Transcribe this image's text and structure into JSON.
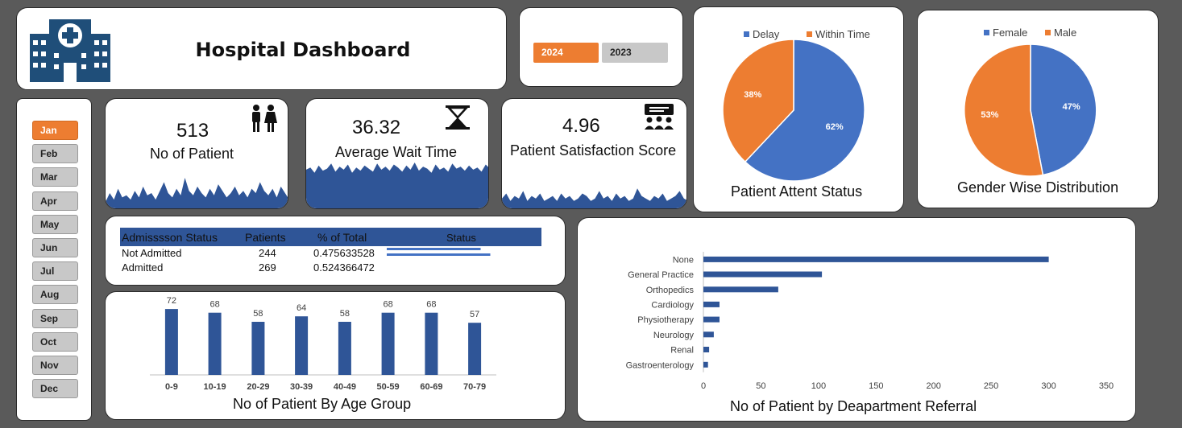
{
  "header": {
    "title": "Hospital Dashboard",
    "logo_icon": "hospital-icon"
  },
  "years": [
    {
      "label": "2024",
      "active": true
    },
    {
      "label": "2023",
      "active": false
    }
  ],
  "months": [
    {
      "label": "Jan",
      "active": true
    },
    {
      "label": "Feb",
      "active": false
    },
    {
      "label": "Mar",
      "active": false
    },
    {
      "label": "Apr",
      "active": false
    },
    {
      "label": "May",
      "active": false
    },
    {
      "label": "Jun",
      "active": false
    },
    {
      "label": "Jul",
      "active": false
    },
    {
      "label": "Aug",
      "active": false
    },
    {
      "label": "Sep",
      "active": false
    },
    {
      "label": "Oct",
      "active": false
    },
    {
      "label": "Nov",
      "active": false
    },
    {
      "label": "Dec",
      "active": false
    }
  ],
  "kpis": {
    "patients": {
      "value": "513",
      "label": "No of Patient",
      "icon": "people-icon"
    },
    "wait": {
      "value": "36.32",
      "label": "Average Wait Time",
      "icon": "hourglass-icon"
    },
    "satisfaction": {
      "value": "4.96",
      "label": "Patient Satisfaction Score",
      "icon": "audience-icon"
    }
  },
  "admission": {
    "headers": [
      "Admisssson Status",
      "Patients",
      "% of Total",
      "Status"
    ],
    "rows": [
      {
        "status": "Not Admitted",
        "patients": "244",
        "pct": "0.475633528",
        "fraction": 0.4756
      },
      {
        "status": "Admitted",
        "patients": "269",
        "pct": "0.524366472",
        "fraction": 0.5244
      }
    ]
  },
  "colors": {
    "blue": "#4472c4",
    "navy": "#2f5597",
    "orange": "#ed7d31",
    "grey": "#c8c8c8"
  },
  "chart_data": [
    {
      "type": "pie",
      "title": "Patient Attent Status",
      "legend": "top",
      "slices": [
        {
          "name": "Delay",
          "value": 62,
          "label": "62%",
          "color": "#4472c4"
        },
        {
          "name": "Within Time",
          "value": 38,
          "label": "38%",
          "color": "#ed7d31"
        }
      ]
    },
    {
      "type": "pie",
      "title": "Gender Wise Distribution",
      "legend": "top",
      "slices": [
        {
          "name": "Female",
          "value": 47,
          "label": "47%",
          "color": "#4472c4"
        },
        {
          "name": "Male",
          "value": 53,
          "label": "53%",
          "color": "#ed7d31"
        }
      ]
    },
    {
      "type": "bar",
      "title": "No of Patient By Age Group",
      "categories": [
        "0-9",
        "10-19",
        "20-29",
        "30-39",
        "40-49",
        "50-59",
        "60-69",
        "70-79"
      ],
      "values": [
        72,
        68,
        58,
        64,
        58,
        68,
        68,
        57
      ],
      "ylim": [
        0,
        80
      ],
      "color": "#2f5597"
    },
    {
      "type": "bar",
      "orientation": "horizontal",
      "title": "No of Patient by Deapartment Referral",
      "categories": [
        "None",
        "General Practice",
        "Orthopedics",
        "Cardiology",
        "Physiotherapy",
        "Neurology",
        "Renal",
        "Gastroenterology"
      ],
      "values": [
        300,
        103,
        65,
        14,
        14,
        9,
        5,
        4
      ],
      "xticks": [
        "0",
        "50",
        "100",
        "150",
        "200",
        "250",
        "300",
        "350"
      ],
      "xlim": [
        0,
        350
      ],
      "color": "#2f5597"
    },
    {
      "type": "area",
      "name": "patients-trend",
      "values": [
        3,
        7,
        4,
        9,
        5,
        6,
        4,
        8,
        5,
        10,
        6,
        7,
        4,
        8,
        12,
        7,
        5,
        9,
        6,
        14,
        8,
        6,
        10,
        7,
        5,
        9,
        6,
        11,
        8,
        5,
        7,
        10,
        6,
        8,
        5,
        9,
        7,
        12,
        8,
        6,
        9,
        5,
        10,
        7,
        4
      ],
      "color": "#2f5597"
    },
    {
      "type": "area",
      "name": "wait-trend",
      "values": [
        38,
        40,
        35,
        42,
        37,
        39,
        44,
        36,
        41,
        38,
        43,
        35,
        40,
        37,
        42,
        39,
        36,
        44,
        38,
        41,
        37,
        43,
        40,
        36,
        42,
        38,
        45,
        37,
        41,
        39,
        35,
        43,
        38,
        40,
        36,
        44,
        39,
        41,
        37,
        42,
        38,
        40,
        36,
        43,
        39
      ],
      "color": "#2f5597"
    },
    {
      "type": "area",
      "name": "satisfaction-trend",
      "values": [
        4,
        6,
        3,
        5,
        4,
        7,
        3,
        5,
        4,
        6,
        3,
        4,
        5,
        3,
        6,
        4,
        5,
        3,
        4,
        6,
        5,
        3,
        4,
        7,
        4,
        5,
        3,
        6,
        4,
        5,
        3,
        4,
        8,
        5,
        4,
        3,
        5,
        4,
        6,
        3,
        4,
        5,
        7,
        4,
        3
      ],
      "color": "#2f5597"
    }
  ]
}
